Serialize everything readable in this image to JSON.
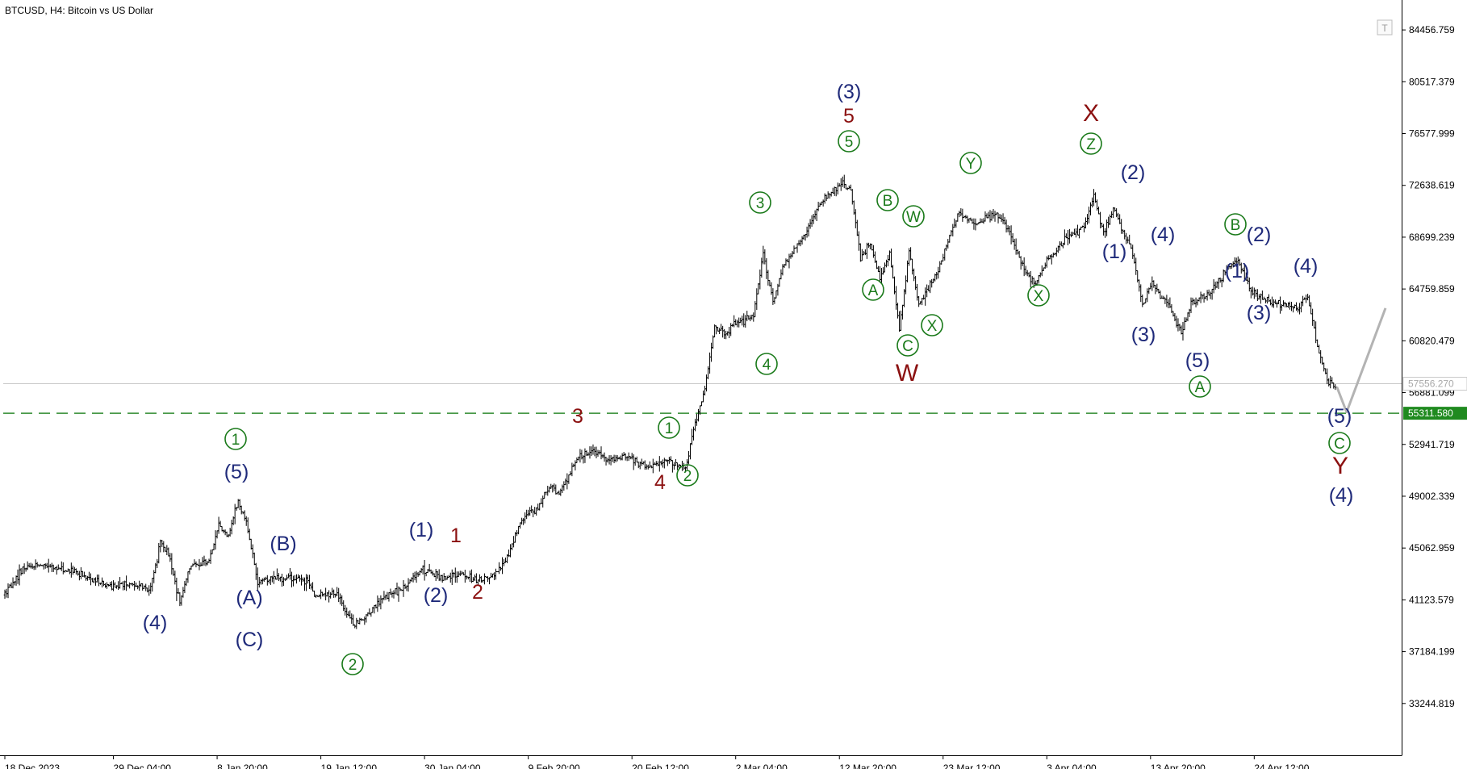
{
  "header": {
    "title": "BTCUSD, H4:  Bitcoin vs US Dollar"
  },
  "toolbar": {
    "t_icon": "T"
  },
  "colors": {
    "candle": "#000000",
    "projection": "#b3b3b3",
    "support_line": "#2e8b2e",
    "support_label_bg": "#1f8a1f",
    "bid_line": "#c8c8c8",
    "wave_blue": "#1f2a7a",
    "wave_red": "#8b1010",
    "wave_green": "#1a7a1a"
  },
  "chart_data": {
    "type": "candlestick",
    "symbol": "BTCUSD",
    "timeframe": "H4",
    "ylim": [
      29305,
      86426
    ],
    "y_ticks": [
      "84456.759",
      "80517.379",
      "76577.999",
      "72638.619",
      "68699.239",
      "64759.859",
      "60820.479",
      "56881.099",
      "52941.719",
      "49002.339",
      "45062.959",
      "41123.579",
      "37184.199",
      "33244.819"
    ],
    "x_ticks": [
      "18 Dec 2023",
      "29 Dec 04:00",
      "8 Jan 20:00",
      "19 Jan 12:00",
      "30 Jan 04:00",
      "9 Feb 20:00",
      "20 Feb 12:00",
      "2 Mar 04:00",
      "12 Mar 20:00",
      "23 Mar 12:00",
      "3 Apr 04:00",
      "13 Apr 20:00",
      "24 Apr 12:00"
    ],
    "x_range": [
      "18 Dec 2023",
      "8 May 2024"
    ],
    "bid_price": {
      "value": 57556.27,
      "label": "57556.270"
    },
    "support_level": {
      "value": 55311.58,
      "label": "55311.580"
    },
    "price_path": [
      [
        "18 Dec 2023",
        41500
      ],
      [
        "20 Dec 2023",
        43600
      ],
      [
        "22 Dec 2023",
        43800
      ],
      [
        "25 Dec 2023",
        43200
      ],
      [
        "27 Dec 2023",
        42700
      ],
      [
        "29 Dec 2023",
        42100
      ],
      [
        "31 Dec 2023",
        42300
      ],
      [
        "2 Jan 2024",
        42000
      ],
      [
        "3 Jan 2024",
        45500
      ],
      [
        "4 Jan 2024",
        44300
      ],
      [
        "5 Jan 2024",
        40800
      ],
      [
        "6 Jan 2024",
        43700
      ],
      [
        "8 Jan 2024",
        44000
      ],
      [
        "9 Jan 2024",
        46800
      ],
      [
        "10 Jan 2024",
        46000
      ],
      [
        "11 Jan 2024",
        48600
      ],
      [
        "12 Jan 2024",
        46500
      ],
      [
        "13 Jan 2024",
        42600
      ],
      [
        "15 Jan 2024",
        42800
      ],
      [
        "17 Jan 2024",
        42700
      ],
      [
        "18 Jan 2024",
        42600
      ],
      [
        "19 Jan 2024",
        41400
      ],
      [
        "21 Jan 2024",
        41600
      ],
      [
        "22 Jan 2024",
        40400
      ],
      [
        "23 Jan 2024",
        39200
      ],
      [
        "24 Jan 2024",
        39800
      ],
      [
        "26 Jan 2024",
        41300
      ],
      [
        "28 Jan 2024",
        42000
      ],
      [
        "30 Jan 2024",
        43500
      ],
      [
        "1 Feb 2024",
        42800
      ],
      [
        "3 Feb 2024",
        43100
      ],
      [
        "5 Feb 2024",
        42600
      ],
      [
        "7 Feb 2024",
        43400
      ],
      [
        "8 Feb 2024",
        45000
      ],
      [
        "9 Feb 2024",
        47100
      ],
      [
        "11 Feb 2024",
        48300
      ],
      [
        "12 Feb 2024",
        49900
      ],
      [
        "13 Feb 2024",
        49200
      ],
      [
        "15 Feb 2024",
        52000
      ],
      [
        "17 Feb 2024",
        52400
      ],
      [
        "18 Feb 2024",
        51700
      ],
      [
        "20 Feb 2024",
        52100
      ],
      [
        "22 Feb 2024",
        51200
      ],
      [
        "24 Feb 2024",
        51700
      ],
      [
        "26 Feb 2024",
        51200
      ],
      [
        "27 Feb 2024",
        54500
      ],
      [
        "28 Feb 2024",
        57000
      ],
      [
        "29 Feb 2024",
        61900
      ],
      [
        "1 Mar 2024",
        61300
      ],
      [
        "2 Mar 2024",
        62000
      ],
      [
        "4 Mar 2024",
        62700
      ],
      [
        "5 Mar 2024",
        67500
      ],
      [
        "6 Mar 2024",
        63800
      ],
      [
        "7 Mar 2024",
        66500
      ],
      [
        "9 Mar 2024",
        68500
      ],
      [
        "11 Mar 2024",
        71500
      ],
      [
        "13 Mar 2024",
        72800
      ],
      [
        "14 Mar 2024",
        72300
      ],
      [
        "15 Mar 2024",
        67000
      ],
      [
        "16 Mar 2024",
        68300
      ],
      [
        "17 Mar 2024",
        65500
      ],
      [
        "18 Mar 2024",
        67500
      ],
      [
        "19 Mar 2024",
        61800
      ],
      [
        "20 Mar 2024",
        67600
      ],
      [
        "21 Mar 2024",
        63500
      ],
      [
        "23 Mar 2024",
        66200
      ],
      [
        "25 Mar 2024",
        70500
      ],
      [
        "27 Mar 2024",
        69800
      ],
      [
        "29 Mar 2024",
        70500
      ],
      [
        "30 Mar 2024",
        69500
      ],
      [
        "1 Apr 2024",
        66000
      ],
      [
        "2 Apr 2024",
        65200
      ],
      [
        "3 Apr 2024",
        66700
      ],
      [
        "5 Apr 2024",
        68500
      ],
      [
        "7 Apr 2024",
        69500
      ],
      [
        "8 Apr 2024",
        71800
      ],
      [
        "9 Apr 2024",
        69000
      ],
      [
        "10 Apr 2024",
        70800
      ],
      [
        "12 Apr 2024",
        67500
      ],
      [
        "13 Apr 2024",
        63500
      ],
      [
        "14 Apr 2024",
        65300
      ],
      [
        "16 Apr 2024",
        63000
      ],
      [
        "17 Apr 2024",
        61500
      ],
      [
        "18 Apr 2024",
        63600
      ],
      [
        "20 Apr 2024",
        64500
      ],
      [
        "22 Apr 2024",
        66500
      ],
      [
        "23 Apr 2024",
        66800
      ],
      [
        "24 Apr 2024",
        64800
      ],
      [
        "25 Apr 2024",
        64200
      ],
      [
        "27 Apr 2024",
        63600
      ],
      [
        "29 Apr 2024",
        63400
      ],
      [
        "30 Apr 2024",
        64200
      ],
      [
        "1 May 2024",
        60500
      ],
      [
        "2 May 2024",
        57800
      ],
      [
        "3 May 2024",
        57300
      ]
    ],
    "projection": [
      [
        "3 May 2024",
        57300
      ],
      [
        "4 May 2024",
        55400
      ],
      [
        "8 May 2024",
        63300
      ]
    ],
    "wave_labels": [
      {
        "text": "(4)",
        "color": "blue"
      },
      {
        "text": "(5)",
        "color": "blue"
      },
      {
        "text": "1",
        "color": "green",
        "circled": true
      },
      {
        "text": "(A)",
        "color": "blue"
      },
      {
        "text": "(B)",
        "color": "blue"
      },
      {
        "text": "(C)",
        "color": "blue"
      },
      {
        "text": "2",
        "color": "green",
        "circled": true
      },
      {
        "text": "(1)",
        "color": "blue"
      },
      {
        "text": "(2)",
        "color": "blue"
      },
      {
        "text": "1",
        "color": "red"
      },
      {
        "text": "2",
        "color": "red"
      },
      {
        "text": "3",
        "color": "red"
      },
      {
        "text": "4",
        "color": "red"
      },
      {
        "text": "1",
        "color": "green",
        "circled": true
      },
      {
        "text": "2",
        "color": "green",
        "circled": true
      },
      {
        "text": "3",
        "color": "green",
        "circled": true
      },
      {
        "text": "4",
        "color": "green",
        "circled": true
      },
      {
        "text": "5",
        "color": "green",
        "circled": true
      },
      {
        "text": "5",
        "color": "red"
      },
      {
        "text": "(3)",
        "color": "blue"
      },
      {
        "text": "A",
        "color": "green",
        "circled": true
      },
      {
        "text": "B",
        "color": "green",
        "circled": true
      },
      {
        "text": "C",
        "color": "green",
        "circled": true
      },
      {
        "text": "W",
        "color": "red",
        "big": true
      },
      {
        "text": "W",
        "color": "green",
        "circled": true
      },
      {
        "text": "X",
        "color": "green",
        "circled": true
      },
      {
        "text": "Y",
        "color": "green",
        "circled": true
      },
      {
        "text": "X",
        "color": "green",
        "circled": true
      },
      {
        "text": "Z",
        "color": "green",
        "circled": true
      },
      {
        "text": "X",
        "color": "red",
        "big": true
      },
      {
        "text": "(2)",
        "color": "blue"
      },
      {
        "text": "(1)",
        "color": "blue"
      },
      {
        "text": "(4)",
        "color": "blue"
      },
      {
        "text": "(3)",
        "color": "blue"
      },
      {
        "text": "(5)",
        "color": "blue"
      },
      {
        "text": "A",
        "color": "green",
        "circled": true
      },
      {
        "text": "B",
        "color": "green",
        "circled": true
      },
      {
        "text": "(2)",
        "color": "blue"
      },
      {
        "text": "(1)",
        "color": "blue"
      },
      {
        "text": "(3)",
        "color": "blue"
      },
      {
        "text": "(4)",
        "color": "blue"
      },
      {
        "text": "(5)",
        "color": "blue"
      },
      {
        "text": "C",
        "color": "green",
        "circled": true
      },
      {
        "text": "Y",
        "color": "red",
        "big": true
      },
      {
        "text": "(4)",
        "color": "blue"
      }
    ]
  }
}
